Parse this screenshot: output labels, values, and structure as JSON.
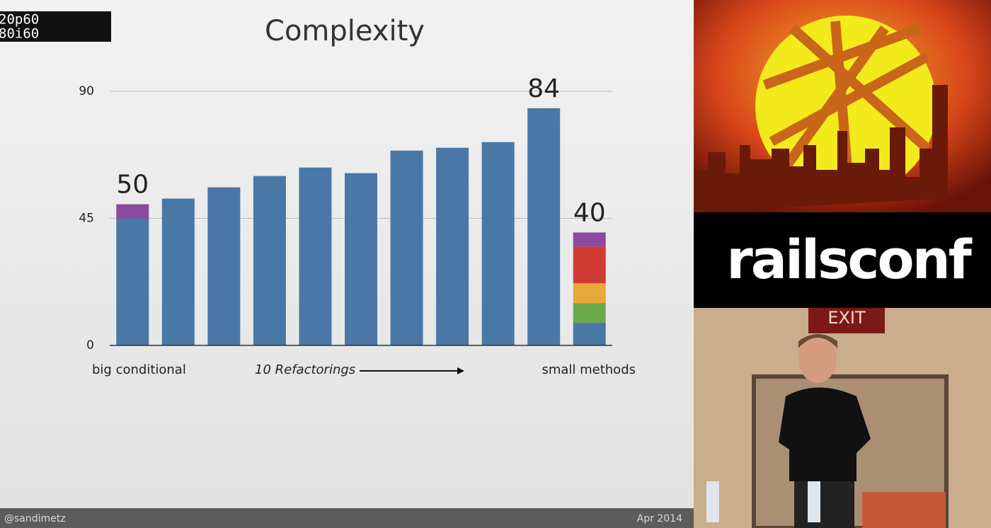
{
  "overlay": {
    "lines": [
      "20p60",
      "80i60"
    ]
  },
  "chart_data": {
    "type": "bar",
    "stacked": true,
    "title": "Complexity",
    "categories": [
      null,
      null,
      null,
      null,
      null,
      null,
      null,
      null,
      null,
      null,
      null
    ],
    "series": [
      {
        "color": "#4a78a6",
        "values": [
          45,
          52,
          56,
          60,
          63,
          61,
          69,
          70,
          72,
          84,
          8
        ]
      },
      {
        "color": "#6ba84a",
        "values": [
          null,
          null,
          null,
          null,
          null,
          null,
          null,
          null,
          null,
          null,
          7
        ]
      },
      {
        "color": "#e8a83a",
        "values": [
          null,
          null,
          null,
          null,
          null,
          null,
          null,
          null,
          null,
          null,
          7
        ]
      },
      {
        "color": "#cf3b33",
        "values": [
          null,
          null,
          null,
          null,
          null,
          null,
          null,
          null,
          null,
          null,
          13
        ]
      },
      {
        "color": "#8c4a9e",
        "values": [
          5,
          null,
          null,
          null,
          null,
          null,
          null,
          null,
          null,
          null,
          5
        ]
      }
    ],
    "totals": [
      50,
      null,
      null,
      null,
      null,
      null,
      null,
      null,
      null,
      84,
      40
    ],
    "ylim": [
      0,
      90
    ],
    "yticks": [
      0,
      45,
      90
    ],
    "grid": true,
    "annotations": {
      "left": "big conditional",
      "middle": "10 Refactorings",
      "right": "small methods"
    }
  },
  "footer": {
    "handle": "@sandimetz",
    "date": "Apr 2014"
  },
  "sidebar": {
    "brand": "railsconf",
    "sign": "EXIT"
  }
}
